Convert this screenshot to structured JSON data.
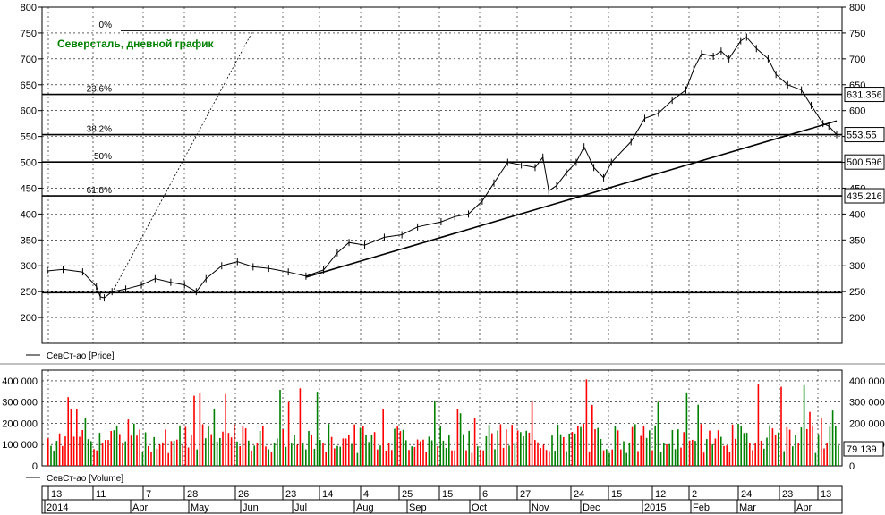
{
  "chart_data": [
    {
      "type": "line",
      "title": "Северсталь, дневной график",
      "legend": "СевСт-ао [Price]",
      "ylim": [
        150,
        800
      ],
      "yticks": [
        200,
        250,
        300,
        350,
        400,
        450,
        500,
        550,
        600,
        650,
        700,
        750,
        800
      ],
      "yticks_right": [
        200,
        250,
        300,
        350,
        400,
        450,
        500,
        550,
        600,
        650,
        700,
        750,
        800
      ],
      "x_time_range": [
        "2014-03-13",
        "2015-04-20"
      ],
      "series": [
        {
          "name": "СевСт-ао",
          "points": [
            [
              "2014-03-13",
              290
            ],
            [
              "2014-03-21",
              293
            ],
            [
              "2014-03-31",
              288
            ],
            [
              "2014-04-07",
              260
            ],
            [
              "2014-04-09",
              240
            ],
            [
              "2014-04-11",
              238
            ],
            [
              "2014-04-15",
              250
            ],
            [
              "2014-04-22",
              255
            ],
            [
              "2014-04-30",
              263
            ],
            [
              "2014-05-07",
              275
            ],
            [
              "2014-05-15",
              268
            ],
            [
              "2014-05-22",
              263
            ],
            [
              "2014-05-28",
              250
            ],
            [
              "2014-06-02",
              275
            ],
            [
              "2014-06-10",
              300
            ],
            [
              "2014-06-18",
              308
            ],
            [
              "2014-06-26",
              298
            ],
            [
              "2014-07-04",
              295
            ],
            [
              "2014-07-14",
              288
            ],
            [
              "2014-07-23",
              280
            ],
            [
              "2014-08-01",
              292
            ],
            [
              "2014-08-08",
              325
            ],
            [
              "2014-08-14",
              345
            ],
            [
              "2014-08-22",
              340
            ],
            [
              "2014-09-01",
              355
            ],
            [
              "2014-09-10",
              360
            ],
            [
              "2014-09-18",
              375
            ],
            [
              "2014-09-30",
              385
            ],
            [
              "2014-10-07",
              395
            ],
            [
              "2014-10-14",
              400
            ],
            [
              "2014-10-21",
              425
            ],
            [
              "2014-10-27",
              460
            ],
            [
              "2014-11-03",
              500
            ],
            [
              "2014-11-10",
              495
            ],
            [
              "2014-11-17",
              490
            ],
            [
              "2014-11-21",
              510
            ],
            [
              "2014-11-24",
              445
            ],
            [
              "2014-11-28",
              455
            ],
            [
              "2014-12-03",
              480
            ],
            [
              "2014-12-08",
              500
            ],
            [
              "2014-12-12",
              530
            ],
            [
              "2014-12-17",
              490
            ],
            [
              "2014-12-22",
              470
            ],
            [
              "2014-12-26",
              500
            ],
            [
              "2015-01-05",
              540
            ],
            [
              "2015-01-12",
              585
            ],
            [
              "2015-01-19",
              595
            ],
            [
              "2015-01-26",
              620
            ],
            [
              "2015-02-02",
              640
            ],
            [
              "2015-02-06",
              680
            ],
            [
              "2015-02-10",
              710
            ],
            [
              "2015-02-16",
              705
            ],
            [
              "2015-02-20",
              715
            ],
            [
              "2015-02-24",
              700
            ],
            [
              "2015-03-02",
              735
            ],
            [
              "2015-03-05",
              742
            ],
            [
              "2015-03-10",
              720
            ],
            [
              "2015-03-16",
              700
            ],
            [
              "2015-03-20",
              670
            ],
            [
              "2015-03-26",
              650
            ],
            [
              "2015-04-02",
              640
            ],
            [
              "2015-04-07",
              610
            ],
            [
              "2015-04-13",
              575
            ],
            [
              "2015-04-16",
              570
            ],
            [
              "2015-04-20",
              553.55
            ]
          ]
        }
      ],
      "fibonacci": {
        "levels": [
          {
            "label": "0%",
            "value": 755
          },
          {
            "label": "23.6%",
            "value": 631.356
          },
          {
            "label": "38.2%",
            "value": 553.55
          },
          {
            "label": "50%",
            "value": 500.596
          },
          {
            "label": "61.8%",
            "value": 435.216
          },
          {
            "label": "",
            "value": 248
          }
        ]
      },
      "price_labels": [
        "631.356",
        "553.55",
        "500.596",
        "435.216"
      ],
      "trendline": {
        "from": [
          "2014-07-23",
          278
        ],
        "to": [
          "2015-04-20",
          580
        ]
      },
      "dotted_line": {
        "from": [
          "2014-04-15",
          248
        ],
        "to": [
          "2014-06-26",
          755
        ]
      }
    },
    {
      "type": "bar",
      "legend": "СевСт-ао [Volume]",
      "ylim": [
        0,
        450000
      ],
      "yticks": [
        "0",
        "100 000",
        "200 000",
        "300 000",
        "400 000"
      ],
      "last_value_label": "79 139",
      "colors": {
        "up": "#008000",
        "down": "#ff0000"
      }
    }
  ],
  "x_axis": {
    "day_ticks": [
      "13",
      "11",
      "7",
      "28",
      "26",
      "23",
      "14",
      "4",
      "25",
      "15",
      "6",
      "27",
      "24",
      "15",
      "12",
      "2",
      "24",
      "23",
      "13"
    ],
    "month_labels": [
      "2014",
      "Apr",
      "May",
      "Jun",
      "Jul",
      "Aug",
      "Sep",
      "Oct",
      "Nov",
      "Dec",
      "2015",
      "Feb",
      "Mar",
      "Apr"
    ]
  },
  "colors": {
    "title": "#008000",
    "price": "#000000",
    "grid": "#000000",
    "volume_up": "#008000",
    "volume_down": "#ff0000"
  }
}
